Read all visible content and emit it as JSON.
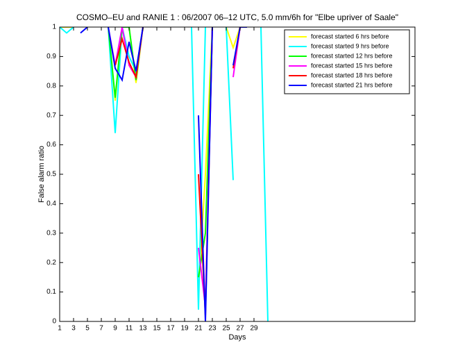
{
  "chart_data": {
    "type": "line",
    "title": "COSMO–EU and RANIE 1 : 06/2007 06–12 UTC, 5.0 mm/6h for \"Elbe upriver of Saale\"",
    "xlabel": "Days",
    "ylabel": "False alarm ratio",
    "xlim": [
      1,
      52.2
    ],
    "xticks": [
      1,
      3,
      5,
      7,
      9,
      11,
      13,
      15,
      17,
      19,
      21,
      23,
      25,
      27,
      29
    ],
    "ylim": [
      0,
      1
    ],
    "yticks": [
      0,
      0.1,
      0.2,
      0.3,
      0.4,
      0.5,
      0.6,
      0.7,
      0.8,
      0.9,
      1
    ],
    "legend": "upper right",
    "series": [
      {
        "name": "forecast started 6 hrs before",
        "color": "#ffff00",
        "x": [
          1,
          2,
          3,
          null,
          8,
          9,
          10,
          11,
          12,
          13,
          null,
          21,
          22,
          23,
          null,
          25,
          26,
          27
        ],
        "values": [
          1,
          1,
          1,
          null,
          1,
          0.75,
          1,
          1,
          0.81,
          1,
          null,
          0.1,
          0.5,
          1,
          null,
          1,
          0.93,
          1
        ]
      },
      {
        "name": "forecast started 9 hrs before",
        "color": "#00ffff",
        "x": [
          1,
          2,
          3,
          null,
          8,
          9,
          10,
          11,
          12,
          13,
          null,
          20,
          21,
          22,
          null,
          25,
          26,
          null,
          30,
          31
        ],
        "values": [
          1,
          0.98,
          1,
          null,
          1,
          0.64,
          1,
          0.9,
          0.85,
          1,
          null,
          1,
          0.04,
          1,
          null,
          1,
          0.48,
          null,
          1,
          0
        ]
      },
      {
        "name": "forecast started 12 hrs before",
        "color": "#00ff00",
        "x": [
          8,
          9,
          10,
          11,
          12,
          13,
          null,
          21,
          22,
          23
        ],
        "values": [
          1,
          0.76,
          1,
          1,
          0.82,
          1,
          null,
          0.15,
          0.3,
          1
        ]
      },
      {
        "name": "forecast started 15 hrs before",
        "color": "#ff00ff",
        "x": [
          8,
          9,
          10,
          11,
          12,
          13,
          null,
          21,
          22,
          23,
          null,
          26,
          27
        ],
        "values": [
          1,
          0.87,
          1,
          0.87,
          0.83,
          1,
          null,
          0.25,
          0.05,
          1,
          null,
          0.83,
          1
        ]
      },
      {
        "name": "forecast started 18 hrs before",
        "color": "#ff0000",
        "x": [
          9,
          10,
          11,
          12,
          13,
          null,
          21,
          22,
          23,
          null,
          26,
          27,
          28
        ],
        "values": [
          0.87,
          0.96,
          0.88,
          0.83,
          1,
          null,
          0.5,
          0.02,
          1,
          null,
          0.86,
          1,
          1
        ]
      },
      {
        "name": "forecast started 21 hrs before",
        "color": "#0000ff",
        "x": [
          4,
          5,
          null,
          8,
          9,
          10,
          11,
          12,
          13,
          null,
          21,
          22,
          23,
          null,
          26,
          27,
          28
        ],
        "values": [
          0.98,
          1,
          null,
          1,
          0.86,
          0.82,
          0.95,
          0.85,
          1,
          null,
          0.7,
          0,
          1,
          null,
          0.87,
          1,
          1
        ]
      }
    ]
  }
}
